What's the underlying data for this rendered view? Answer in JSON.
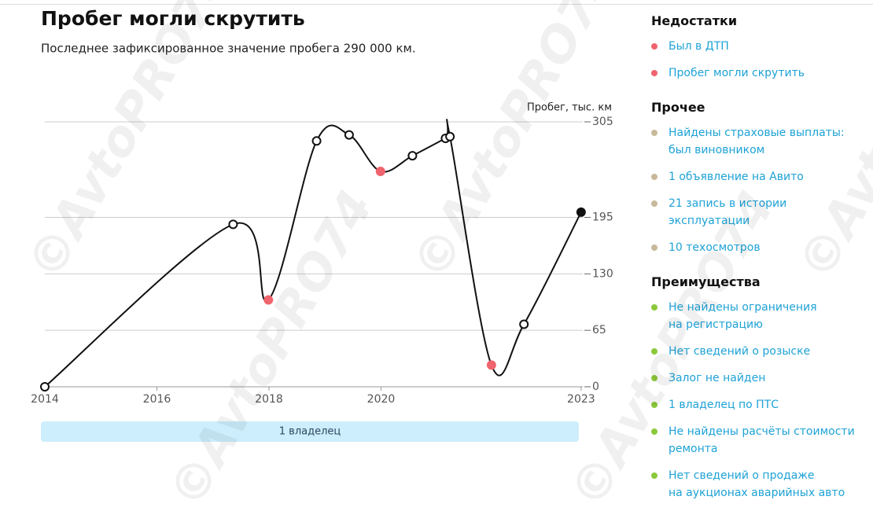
{
  "header": {
    "title": "Пробег могли скрутить",
    "subtitle": "Последнее зафиксированное значение пробега 290 000 км."
  },
  "watermark": "©AvtoPRO74",
  "chart_data": {
    "type": "line",
    "y_label": "Пробег, тыс. км",
    "x": [
      2014,
      2017.36,
      2017.99,
      2018.85,
      2019.43,
      2019.99,
      2020.56,
      2021.15,
      2021.23,
      2021.97,
      2022.55,
      2023.57
    ],
    "values": [
      0,
      187,
      100,
      283,
      290,
      248,
      266,
      286,
      288,
      25,
      72,
      201
    ],
    "color": "#111111",
    "point_colors": [
      "#ffffff",
      "#ffffff",
      "#f0646e",
      "#ffffff",
      "#ffffff",
      "#f0646e",
      "#ffffff",
      "#ffffff",
      "#ffffff",
      "#f0646e",
      "#ffffff",
      "#111111"
    ],
    "xlim": [
      2014,
      2023.6
    ],
    "xticks": [
      2014,
      2016,
      2018,
      2020,
      {
        "value": 2023.57,
        "label": "2023"
      }
    ],
    "ylim": [
      0,
      305
    ],
    "yticks": [
      0,
      65,
      130,
      195,
      305
    ],
    "grid": true
  },
  "owner_bar": "1 владелец",
  "sidebar": {
    "sections": [
      {
        "title": "Недостатки",
        "color": "#f0646e",
        "items": [
          {
            "lines": [
              "Был в ДТП"
            ]
          },
          {
            "lines": [
              "Пробег могли скрутить"
            ]
          }
        ]
      },
      {
        "title": "Прочее",
        "color": "#c8b99a",
        "items": [
          {
            "lines": [
              "Найдены страховые выплаты:",
              "был виновником"
            ]
          },
          {
            "lines": [
              "1 объявление на Авито"
            ]
          },
          {
            "lines": [
              "21 запись в истории",
              "эксплуатации"
            ]
          },
          {
            "lines": [
              "10 техосмотров"
            ]
          }
        ]
      },
      {
        "title": "Преимущества",
        "color": "#8cc83c",
        "items": [
          {
            "lines": [
              "Не найдены ограничения",
              "на регистрацию"
            ]
          },
          {
            "lines": [
              "Нет сведений о розыске"
            ]
          },
          {
            "lines": [
              "Залог не найден"
            ]
          },
          {
            "lines": [
              "1 владелец по ПТС"
            ]
          },
          {
            "lines": [
              "Не найдены расчёты стоимости",
              "ремонта"
            ]
          },
          {
            "lines": [
              "Нет сведений о продаже",
              "на аукционах аварийных авто"
            ]
          }
        ]
      }
    ]
  }
}
